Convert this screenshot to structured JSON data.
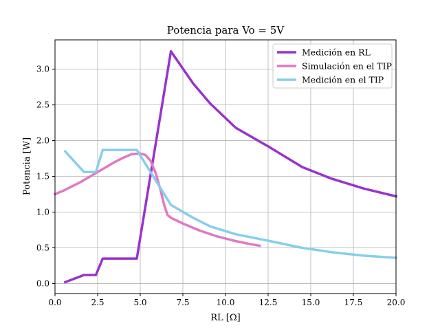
{
  "chart_data": {
    "type": "line",
    "title": "Potencia para Vo = 5V",
    "xlabel": "RL [Ω]",
    "ylabel": "Potencia [W]",
    "xlim": [
      0,
      20
    ],
    "ylim": [
      -0.14,
      3.41
    ],
    "xticks": [
      0,
      2.5,
      5,
      7.5,
      10,
      12.5,
      15,
      17.5,
      20
    ],
    "xtick_labels": [
      "0.0",
      "2.5",
      "5.0",
      "7.5",
      "10.0",
      "12.5",
      "15.0",
      "17.5",
      "20.0"
    ],
    "yticks": [
      0,
      0.5,
      1,
      1.5,
      2,
      2.5,
      3
    ],
    "ytick_labels": [
      "0.0",
      "0.5",
      "1.0",
      "1.5",
      "2.0",
      "2.5",
      "3.0"
    ],
    "grid": true,
    "legend_position": "top-right",
    "series": [
      {
        "name": "Medición en RL",
        "color": "#9933cc",
        "x": [
          0.6,
          1.7,
          2.4,
          2.8,
          4.8,
          6.8,
          8.1,
          9.1,
          10.6,
          12.5,
          14.5,
          16.2,
          18.1,
          20.0
        ],
        "y": [
          0.02,
          0.12,
          0.12,
          0.35,
          0.35,
          3.25,
          2.8,
          2.52,
          2.18,
          1.92,
          1.63,
          1.47,
          1.33,
          1.22
        ]
      },
      {
        "name": "Simulación en el TIP",
        "color": "#e377c2",
        "x": [
          0.0,
          0.5,
          1.0,
          1.5,
          2.0,
          2.5,
          3.0,
          3.5,
          4.0,
          4.5,
          5.0,
          5.3,
          5.6,
          5.9,
          6.2,
          6.4,
          6.6,
          6.8,
          7.5,
          8.5,
          9.5,
          10.5,
          11.5,
          12.0
        ],
        "y": [
          1.25,
          1.3,
          1.36,
          1.42,
          1.49,
          1.56,
          1.63,
          1.7,
          1.76,
          1.81,
          1.82,
          1.8,
          1.72,
          1.55,
          1.3,
          1.1,
          0.96,
          0.92,
          0.84,
          0.74,
          0.66,
          0.6,
          0.55,
          0.53
        ]
      },
      {
        "name": "Medición en el TIP",
        "color": "#87ceeb",
        "x": [
          0.6,
          1.7,
          2.4,
          2.8,
          4.8,
          6.8,
          8.1,
          9.1,
          10.6,
          12.5,
          14.5,
          16.2,
          18.1,
          20.0
        ],
        "y": [
          1.85,
          1.56,
          1.56,
          1.87,
          1.87,
          1.1,
          0.92,
          0.8,
          0.69,
          0.6,
          0.5,
          0.44,
          0.39,
          0.36
        ]
      }
    ]
  }
}
